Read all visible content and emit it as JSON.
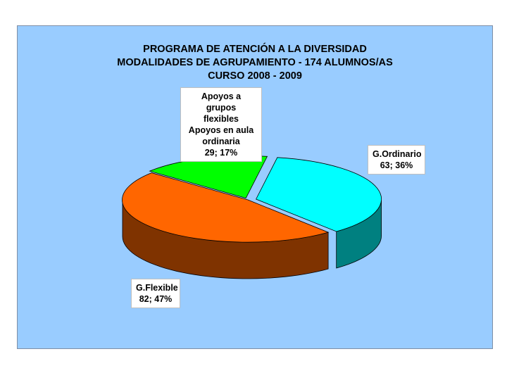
{
  "chart_data": {
    "type": "pie",
    "title": [
      "PROGRAMA DE ATENCIÓN A LA DIVERSIDAD",
      "MODALIDADES DE AGRUPAMIENTO - 174 ALUMNOS/AS",
      "CURSO 2008 - 2009"
    ],
    "slices": [
      {
        "name": "G.Ordinario",
        "value": 63,
        "percent": "36%",
        "color": "#00ffff",
        "side_color": "#008080",
        "label_lines": [
          "G.Ordinario",
          "63; 36%"
        ]
      },
      {
        "name": "G.Flexible",
        "value": 82,
        "percent": "47%",
        "color": "#ff6600",
        "side_color": "#7f3300",
        "label_lines": [
          "G.Flexible",
          "82; 47%"
        ]
      },
      {
        "name": "Apoyos a grupos flexibles Apoyos en aula ordinaria",
        "value": 29,
        "percent": "17%",
        "color": "#00ff00",
        "side_color": "#008000",
        "label_lines": [
          "Apoyos a grupos",
          "flexibles",
          "Apoyos en aula",
          "ordinaria",
          "29; 17%"
        ]
      }
    ],
    "total": 174,
    "style": "3d-exploded-pie",
    "background_color": "#99ccff"
  }
}
